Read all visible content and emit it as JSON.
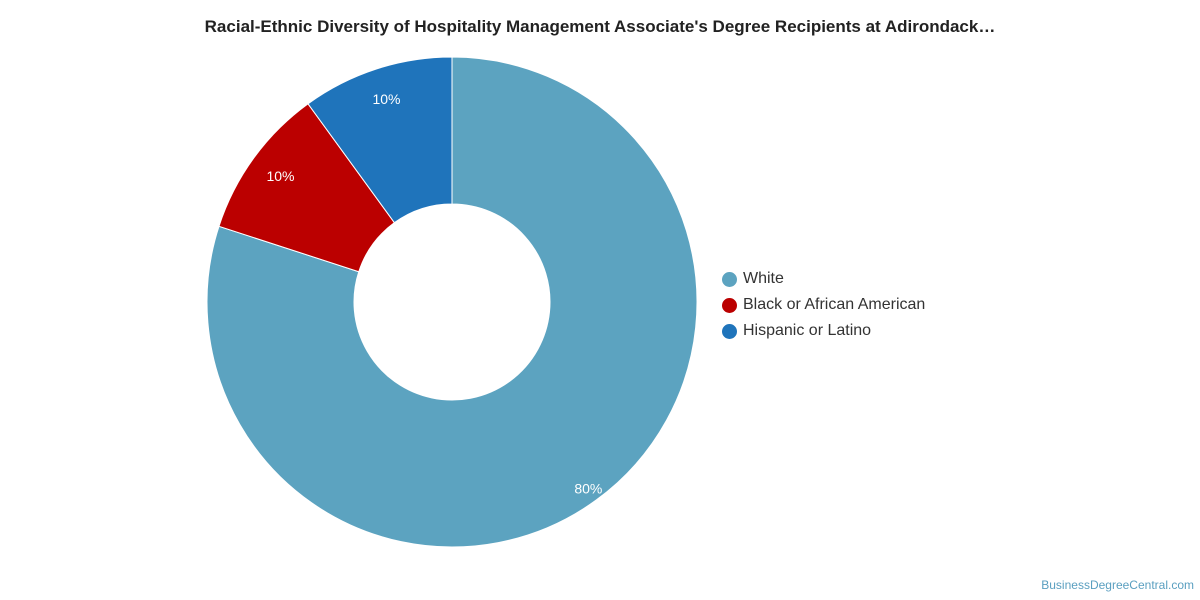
{
  "chart_data": {
    "type": "pie",
    "title": "Racial-Ethnic Diversity of Hospitality Management Associate's Degree Recipients at Adirondack…",
    "donut": true,
    "categories": [
      "White",
      "Black or African American",
      "Hispanic or Latino"
    ],
    "values": [
      80,
      10,
      10
    ],
    "data_labels": [
      "80%",
      "10%",
      "10%"
    ],
    "colors": [
      "#5ca3c0",
      "#bb0000",
      "#1f74bb"
    ],
    "legend_position": "right"
  },
  "watermark": "BusinessDegreeCentral.com"
}
